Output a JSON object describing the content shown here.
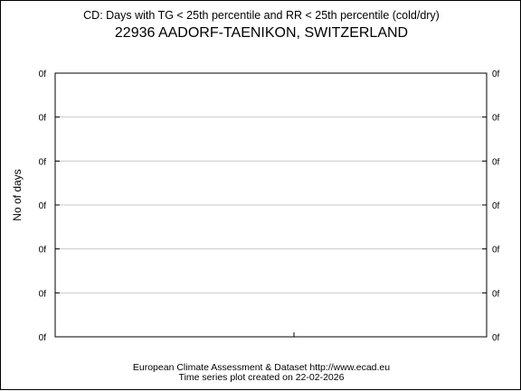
{
  "chart_data": {
    "type": "line",
    "title": "CD: Days with TG < 25th percentile and RR < 25th percentile (cold/dry)",
    "subtitle": "22936 AADORF-TAENIKON, SWITZERLAND",
    "xlabel": "",
    "ylabel": "No of days",
    "y_tick_labels": [
      "0f",
      "0f",
      "0f",
      "0f",
      "0f",
      "0f",
      "0f"
    ],
    "x_tick_labels": [],
    "series": [],
    "grid": true,
    "legend": "none"
  },
  "footer": {
    "line1": "European Climate Assessment & Dataset  http://www.ecad.eu",
    "line2": "Time series plot created on 22-02-2026"
  },
  "colors": {
    "grid": "#c8c8c8",
    "axis": "#000000",
    "background": "#ffffff"
  }
}
